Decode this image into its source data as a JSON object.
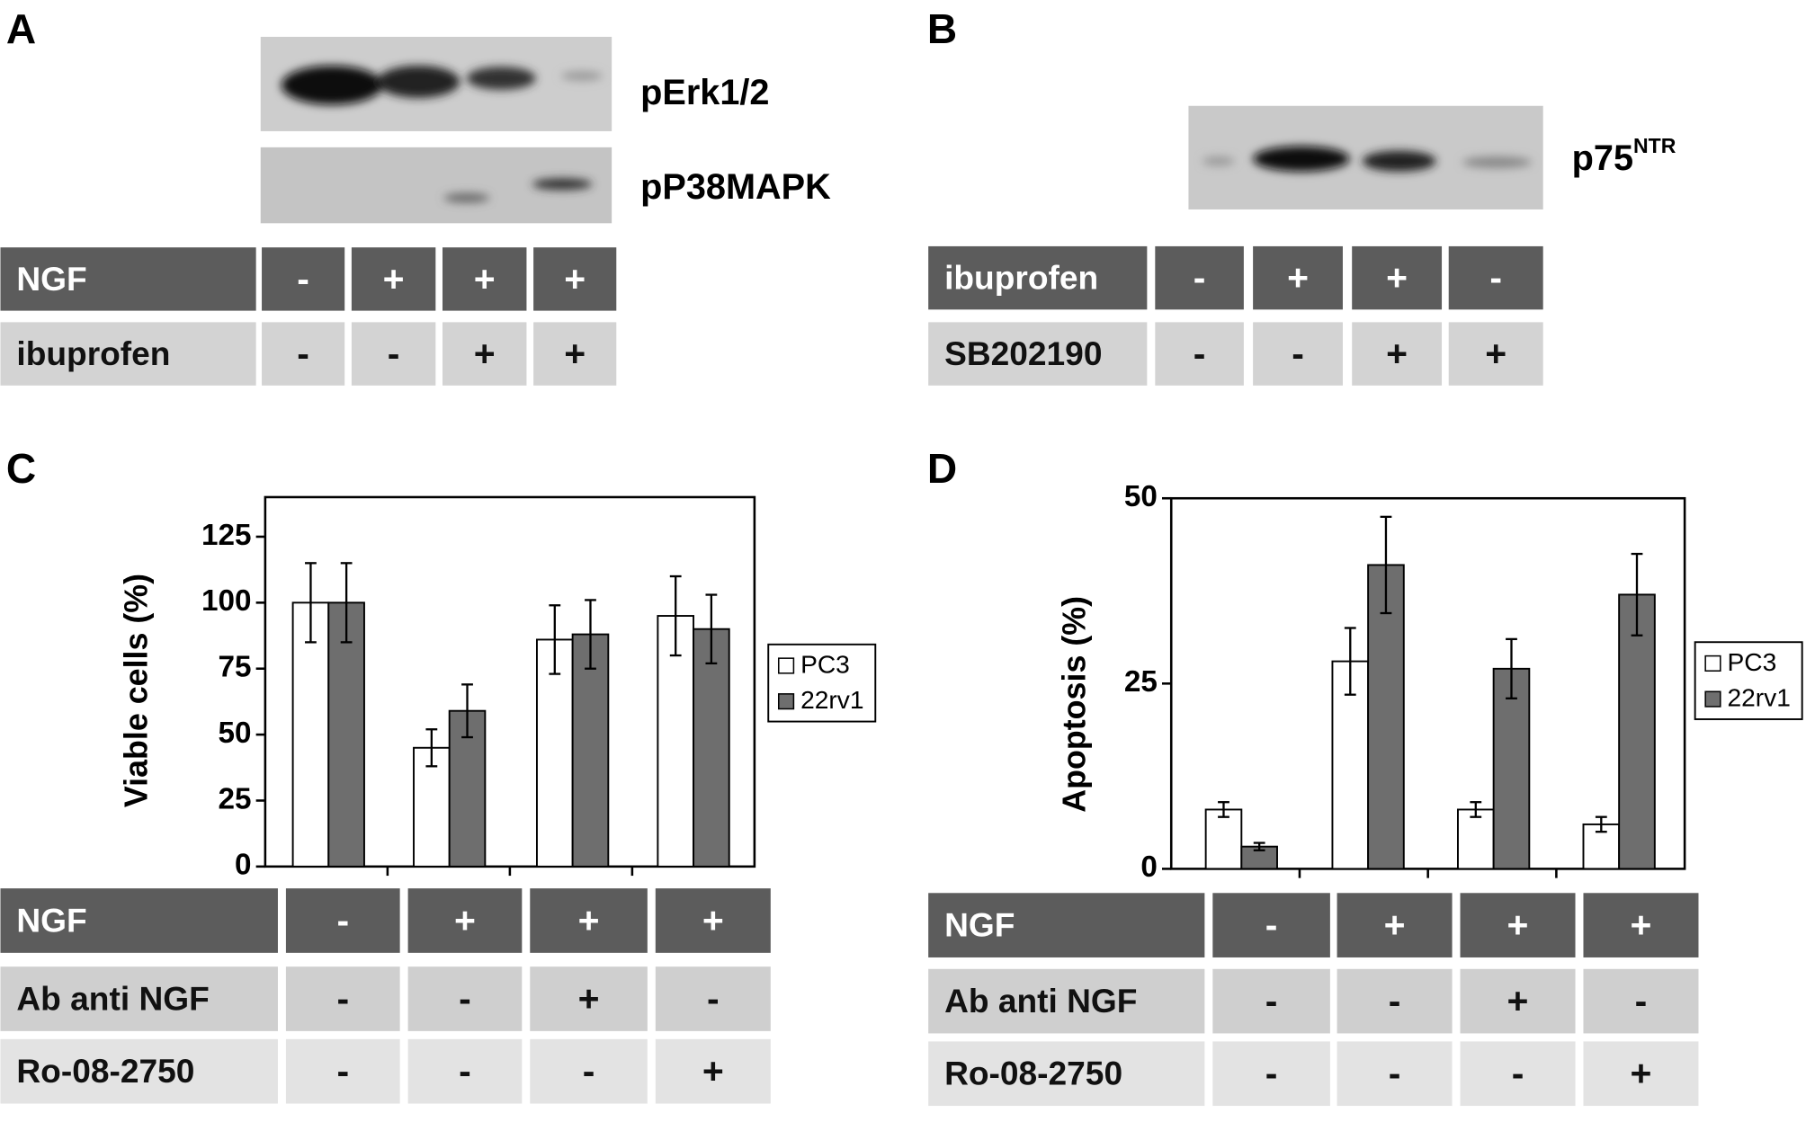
{
  "panels": [
    {
      "label": "A",
      "blots": [
        {
          "name": "pErk1/2"
        },
        {
          "name": "pP38MAPK"
        }
      ],
      "conditions": [
        [
          "NGF",
          "-",
          "+",
          "+",
          "+"
        ],
        [
          "ibuprofen",
          "-",
          "-",
          "+",
          "+"
        ]
      ]
    },
    {
      "label": "B",
      "blots": [
        {
          "name": "p75",
          "sup": "NTR"
        }
      ],
      "conditions": [
        [
          "ibuprofen",
          "-",
          "+",
          "+",
          "-"
        ],
        [
          "SB202190",
          "-",
          "-",
          "+",
          "+"
        ]
      ]
    }
  ],
  "chart_data": [
    {
      "type": "bar",
      "label": "C",
      "y_label": "Viable cells (%)",
      "categories": [
        null,
        null,
        null,
        null
      ],
      "series": [
        {
          "name": "PC3",
          "color": "#ffffff",
          "values": [
            100,
            45,
            86,
            95
          ],
          "errors": [
            15,
            7,
            13,
            15
          ]
        },
        {
          "name": "22rv1",
          "color": "#6e6e6e",
          "values": [
            100,
            59,
            88,
            90
          ],
          "errors": [
            15,
            10,
            13,
            13
          ]
        }
      ],
      "ylim": [
        0,
        140
      ],
      "yticks": [
        0,
        25,
        50,
        75,
        100,
        125
      ],
      "conditions": [
        [
          "NGF",
          "-",
          "+",
          "+",
          "+"
        ],
        [
          "Ab anti NGF",
          "-",
          "-",
          "+",
          "-"
        ],
        [
          "Ro-08-2750",
          "-",
          "-",
          "-",
          "+"
        ]
      ]
    },
    {
      "type": "bar",
      "label": "D",
      "y_label": "Apoptosis (%)",
      "categories": [
        null,
        null,
        null,
        null
      ],
      "series": [
        {
          "name": "PC3",
          "color": "#ffffff",
          "values": [
            8,
            28,
            8,
            6
          ],
          "errors": [
            1,
            4.5,
            1,
            1
          ]
        },
        {
          "name": "22rv1",
          "color": "#6e6e6e",
          "values": [
            3,
            41,
            27,
            37
          ],
          "errors": [
            0.5,
            6.5,
            4,
            5.5
          ]
        }
      ],
      "ylim": [
        0,
        50
      ],
      "yticks": [
        0,
        25,
        50
      ],
      "conditions": [
        [
          "NGF",
          "-",
          "+",
          "+",
          "+"
        ],
        [
          "Ab anti NGF",
          "-",
          "-",
          "+",
          "-"
        ],
        [
          "Ro-08-2750",
          "-",
          "-",
          "-",
          "+"
        ]
      ]
    }
  ]
}
